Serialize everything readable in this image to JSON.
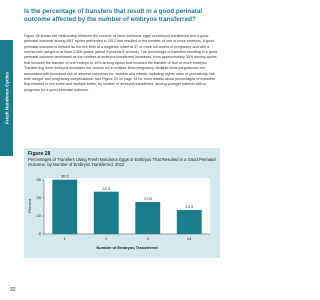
{
  "header": {
    "title": "Is the percentage of transfers that result in a good perinatal outcome affected by the number of embryos transferred?"
  },
  "side_tab": "Fresh Nondonor Cycles",
  "body": "Figure 28 shows the relationship between the number of fresh nondonor eggs or embryos transferred and a good perinatal outcome among ART cycles performed in 2012 that resulted in the transfer of one or more embryos. A good perinatal outcome is defined as the live birth of a singleton infant at 37 or more full weeks of pregnancy and with a normal birth weight of at least 2,500 grams (about 5 pounds 8 ounces). The percentage of transfers resulting in a good perinatal outcome decreased as the number of embryos transferred increased, from approximately 30% among cycles that involved the transfer of one embryo to 13% among cycles that involved the transfer of four or more embryos. Transferring more embryos increases the chance for a multiple-fetus pregnancy. Multiple-fetus pregnancies are associated with increased risk of adverse outcomes for mothers and infants, including higher rates of prematurity, low birth weight, and pregnancy complications. See Figure 29 on page 34 for more details about percentages of transfers that resulted in live births and multiple births, by number of embryos transferred, among younger patients with a prognosis for a good perinatal outcome.",
  "figure": {
    "label": "Figure 28",
    "caption": "Percentages of Transfers Using Fresh Nondonor Eggs or Embryos That Resulted in a Good Perinatal Outcome, by Number of Embryos Transferred, 2012"
  },
  "chart_data": {
    "type": "bar",
    "categories": [
      "1",
      "2",
      "3",
      "≥4"
    ],
    "values": [
      30.2,
      23.5,
      17.8,
      13.3
    ],
    "color": "#1b7d8c",
    "x_label": "Number of Embryos Transferred",
    "y_label": "Percent",
    "ylim": [
      0,
      30
    ],
    "yticks": [
      0,
      10,
      20,
      30
    ],
    "grid": false
  },
  "page_number": "32"
}
